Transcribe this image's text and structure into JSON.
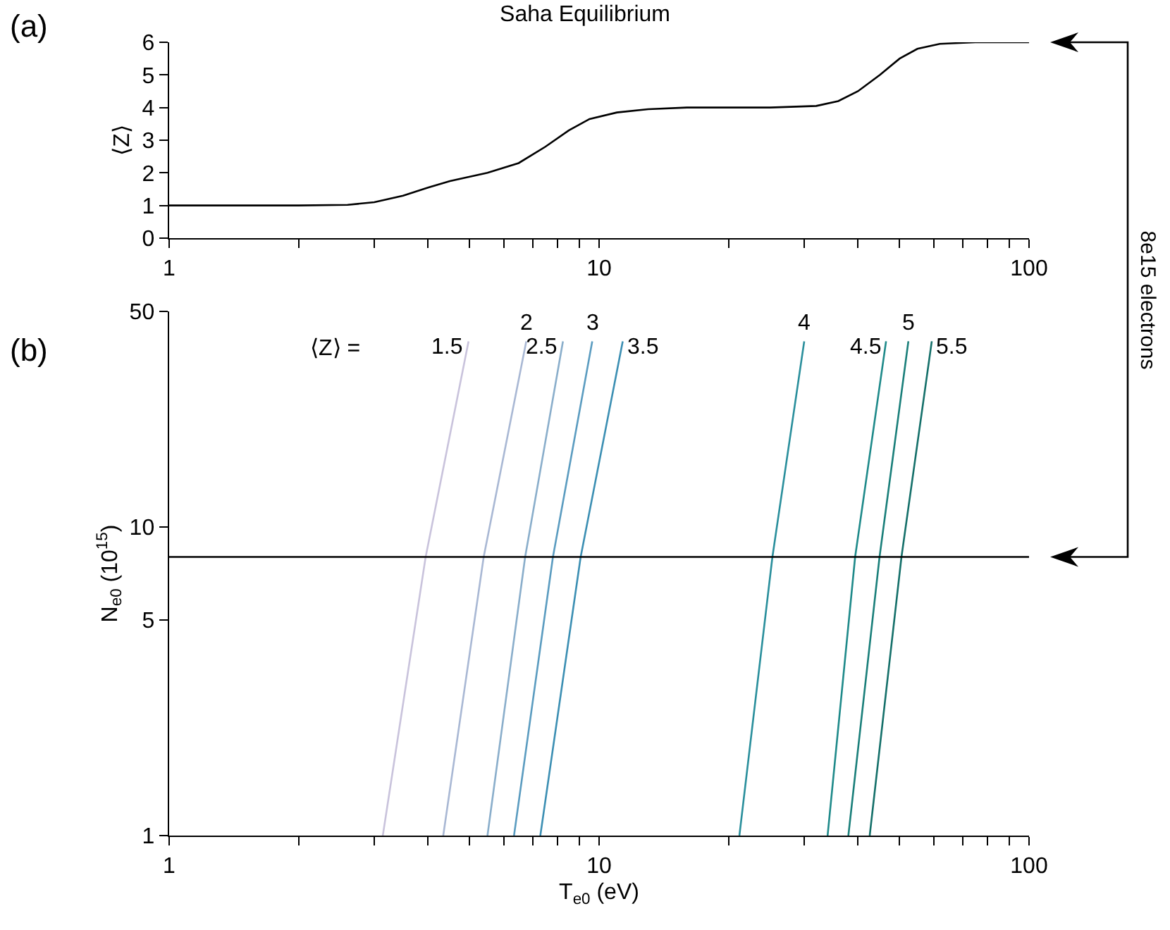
{
  "chart_data": [
    {
      "type": "line",
      "title": "Saha Equilibrium",
      "ylabel": "⟨Z⟩",
      "annotations": [
        "(a)"
      ],
      "log": "x",
      "legend": false,
      "grid": false,
      "x": [
        1,
        2,
        2.6,
        3,
        3.5,
        4,
        4.5,
        5.5,
        6.5,
        7.5,
        8.5,
        9.5,
        11,
        13,
        16,
        25,
        32,
        36,
        40,
        45,
        50,
        55,
        62,
        75,
        100
      ],
      "values": [
        1,
        1,
        1.02,
        1.1,
        1.3,
        1.55,
        1.75,
        2,
        2.3,
        2.8,
        3.3,
        3.65,
        3.85,
        3.95,
        4,
        4,
        4.05,
        4.2,
        4.5,
        5,
        5.5,
        5.8,
        5.95,
        6,
        6
      ],
      "color": "#000000",
      "xlim": [
        1,
        100
      ],
      "xticks": [
        1,
        {
          "value": 2,
          "label": null
        },
        {
          "value": 3,
          "label": null
        },
        {
          "value": 4,
          "label": null
        },
        {
          "value": 5,
          "label": null
        },
        {
          "value": 6,
          "label": null
        },
        {
          "value": 7,
          "label": null
        },
        {
          "value": 8,
          "label": null
        },
        {
          "value": 9,
          "label": null
        },
        10,
        {
          "value": 20,
          "label": null
        },
        {
          "value": 30,
          "label": null
        },
        {
          "value": 40,
          "label": null
        },
        {
          "value": 50,
          "label": null
        },
        {
          "value": 60,
          "label": null
        },
        {
          "value": 70,
          "label": null
        },
        {
          "value": 80,
          "label": null
        },
        {
          "value": 90,
          "label": null
        },
        100
      ],
      "ylim": [
        0,
        6
      ],
      "yticks": [
        0,
        1,
        2,
        3,
        4,
        5,
        6
      ]
    },
    {
      "type": "line",
      "xlabel": "T$_{e0}$ (eV)",
      "ylabel": "N$_{e0}$ (10$^{15}$)",
      "annotations": [
        "(b)",
        "⟨Z⟩ =",
        "8e15 electrons"
      ],
      "log": "xy",
      "legend": false,
      "grid": false,
      "series": [
        {
          "name": "1.5",
          "color": "#c9c3dc",
          "x": [
            3.14,
            3.95,
            4.97
          ],
          "values": [
            1,
            8,
            40
          ]
        },
        {
          "name": "2",
          "color": "#a9b8d4",
          "x": [
            4.34,
            5.39,
            6.77
          ],
          "values": [
            1,
            8,
            40
          ]
        },
        {
          "name": "2.5",
          "color": "#8aaecb",
          "x": [
            5.5,
            6.73,
            8.24
          ],
          "values": [
            1,
            8,
            40
          ]
        },
        {
          "name": "3",
          "color": "#5b9cc0",
          "x": [
            6.34,
            7.81,
            9.64
          ],
          "values": [
            1,
            8,
            40
          ]
        },
        {
          "name": "3.5",
          "color": "#3c8fb3",
          "x": [
            7.3,
            9.06,
            11.35
          ],
          "values": [
            1,
            8,
            40
          ]
        },
        {
          "name": "4",
          "color": "#2a8f9c",
          "x": [
            21.2,
            25.3,
            30
          ],
          "values": [
            1,
            8,
            40
          ]
        },
        {
          "name": "4.5",
          "color": "#1f8a8a",
          "x": [
            34,
            39.4,
            46.5
          ],
          "values": [
            1,
            8,
            40
          ]
        },
        {
          "name": "5",
          "color": "#1a7f7a",
          "x": [
            38,
            44.9,
            52.4
          ],
          "values": [
            1,
            8,
            40
          ]
        },
        {
          "name": "5.5",
          "color": "#15706a",
          "x": [
            42.6,
            50.5,
            59.4
          ],
          "values": [
            1,
            8,
            40
          ]
        }
      ],
      "ref_lines": [
        {
          "axis": "y",
          "value": 8,
          "color": "#000000"
        }
      ],
      "xlim": [
        1,
        100
      ],
      "xticks": [
        1,
        {
          "value": 2,
          "label": null
        },
        {
          "value": 3,
          "label": null
        },
        {
          "value": 4,
          "label": null
        },
        {
          "value": 5,
          "label": null
        },
        {
          "value": 6,
          "label": null
        },
        {
          "value": 7,
          "label": null
        },
        {
          "value": 8,
          "label": null
        },
        {
          "value": 9,
          "label": null
        },
        10,
        {
          "value": 20,
          "label": null
        },
        {
          "value": 30,
          "label": null
        },
        {
          "value": 40,
          "label": null
        },
        {
          "value": 50,
          "label": null
        },
        {
          "value": 60,
          "label": null
        },
        {
          "value": 70,
          "label": null
        },
        {
          "value": 80,
          "label": null
        },
        {
          "value": 90,
          "label": null
        },
        100
      ],
      "ylim": [
        1,
        50
      ],
      "yticks": [
        1,
        5,
        10,
        50
      ]
    }
  ]
}
